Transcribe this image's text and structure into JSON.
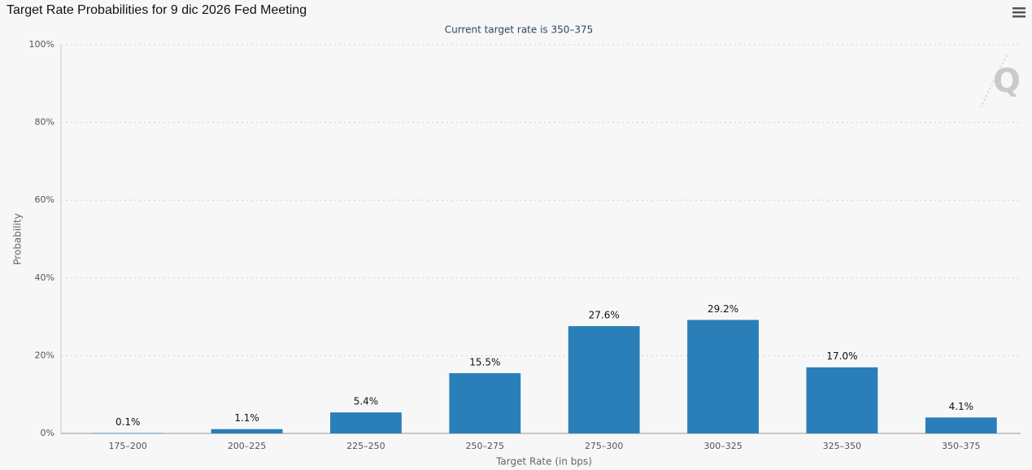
{
  "chart_data": {
    "type": "bar",
    "title": "Target Rate Probabilities for 9 dic 2026 Fed Meeting",
    "subtitle": "Current target rate is 350–375",
    "x_label": "Target Rate (in bps)",
    "y_label": "Probability",
    "categories": [
      "175–200",
      "200–225",
      "225–250",
      "250–275",
      "275–300",
      "300–325",
      "325–350",
      "350–375"
    ],
    "values": [
      0.1,
      1.1,
      5.4,
      15.5,
      27.6,
      29.2,
      17.0,
      4.1
    ],
    "value_labels": [
      "0.1%",
      "1.1%",
      "5.4%",
      "15.5%",
      "27.6%",
      "29.2%",
      "17.0%",
      "4.1%"
    ],
    "color": "#2a7fb8",
    "ylim": [
      0,
      100
    ],
    "yticks": [
      {
        "value": 0,
        "label": "0%"
      },
      {
        "value": 20,
        "label": "20%"
      },
      {
        "value": 40,
        "label": "40%"
      },
      {
        "value": 60,
        "label": "60%"
      },
      {
        "value": 80,
        "label": "80%"
      },
      {
        "value": 100,
        "label": "100%"
      }
    ],
    "grid": true
  }
}
